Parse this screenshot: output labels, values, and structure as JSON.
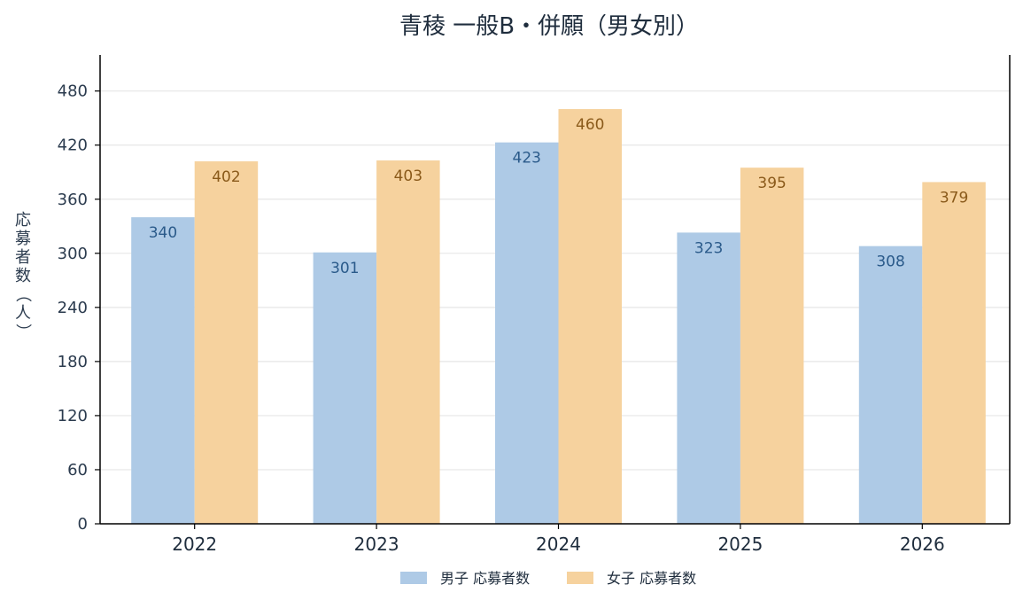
{
  "chart_data": {
    "type": "bar",
    "title": "青稜 一般B・併願（男女別）",
    "ylabel": "応募者数（人）",
    "xlabel": "",
    "categories": [
      "2022",
      "2023",
      "2024",
      "2025",
      "2026"
    ],
    "series": [
      {
        "name": "男子 応募者数",
        "values": [
          340,
          301,
          423,
          323,
          308
        ],
        "color": "#aecae6"
      },
      {
        "name": "女子 応募者数",
        "values": [
          402,
          403,
          460,
          395,
          379
        ],
        "color": "#f6d29e"
      }
    ],
    "ylim": [
      0,
      520
    ],
    "yticks": [
      0,
      60,
      120,
      180,
      240,
      300,
      360,
      420,
      480
    ],
    "grid": true,
    "legend_position": "bottom-center"
  }
}
